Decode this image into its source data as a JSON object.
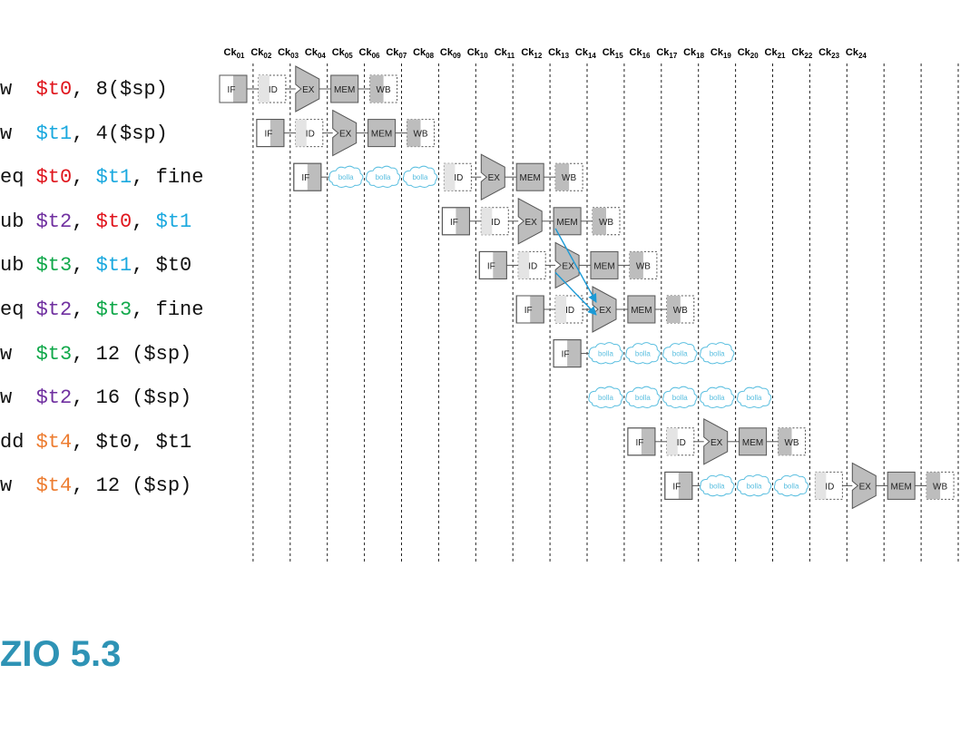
{
  "instructions": [
    {
      "tokens": [
        {
          "t": "w  ",
          "c": ""
        },
        {
          "t": "$t0",
          "c": "c-red"
        },
        {
          "t": ", 8($sp)",
          "c": ""
        }
      ]
    },
    {
      "tokens": [
        {
          "t": "w  ",
          "c": ""
        },
        {
          "t": "$t1",
          "c": "c-cyan"
        },
        {
          "t": ", 4($sp)",
          "c": ""
        }
      ]
    },
    {
      "tokens": [
        {
          "t": "eq ",
          "c": ""
        },
        {
          "t": "$t0",
          "c": "c-red"
        },
        {
          "t": ", ",
          "c": ""
        },
        {
          "t": "$t1",
          "c": "c-cyan"
        },
        {
          "t": ", fine",
          "c": ""
        }
      ]
    },
    {
      "tokens": [
        {
          "t": "ub ",
          "c": ""
        },
        {
          "t": "$t2",
          "c": "c-purple"
        },
        {
          "t": ", ",
          "c": ""
        },
        {
          "t": "$t0",
          "c": "c-red"
        },
        {
          "t": ", ",
          "c": ""
        },
        {
          "t": "$t1",
          "c": "c-cyan"
        }
      ]
    },
    {
      "tokens": [
        {
          "t": "ub ",
          "c": ""
        },
        {
          "t": "$t3",
          "c": "c-green"
        },
        {
          "t": ", ",
          "c": ""
        },
        {
          "t": "$t1",
          "c": "c-cyan"
        },
        {
          "t": ", $t0",
          "c": ""
        }
      ]
    },
    {
      "tokens": [
        {
          "t": "eq ",
          "c": ""
        },
        {
          "t": "$t2",
          "c": "c-purple"
        },
        {
          "t": ", ",
          "c": ""
        },
        {
          "t": "$t3",
          "c": "c-green"
        },
        {
          "t": ", fine",
          "c": ""
        }
      ]
    },
    {
      "tokens": [
        {
          "t": "w  ",
          "c": ""
        },
        {
          "t": "$t3",
          "c": "c-green"
        },
        {
          "t": ", 12 ($sp)",
          "c": ""
        }
      ]
    },
    {
      "tokens": [
        {
          "t": "w  ",
          "c": ""
        },
        {
          "t": "$t2",
          "c": "c-purple"
        },
        {
          "t": ", 16 ($sp)",
          "c": ""
        }
      ]
    },
    {
      "tokens": [
        {
          "t": "dd ",
          "c": ""
        },
        {
          "t": "$t4",
          "c": "c-orange"
        },
        {
          "t": ", $t0, $t1",
          "c": ""
        }
      ]
    },
    {
      "tokens": [
        {
          "t": "w  ",
          "c": ""
        },
        {
          "t": "$t4",
          "c": "c-orange"
        },
        {
          "t": ", 12 ($sp)",
          "c": ""
        }
      ]
    }
  ],
  "clocks": [
    "01",
    "02",
    "03",
    "04",
    "05",
    "06",
    "07",
    "08",
    "09",
    "10",
    "11",
    "12",
    "13",
    "14",
    "15",
    "16",
    "17",
    "18",
    "19",
    "20",
    "21",
    "22",
    "23",
    "24"
  ],
  "clock_prefix": "Ck",
  "stage_labels": {
    "IF": "IF",
    "ID": "ID",
    "EX": "EX",
    "MEM": "MEM",
    "WB": "WB",
    "bubble": "bolla"
  },
  "pipeline": [
    [
      "IF",
      "ID",
      "EX",
      "MEM",
      "WB"
    ],
    [
      "",
      "IF",
      "ID",
      "EX",
      "MEM",
      "WB"
    ],
    [
      "",
      "",
      "IF",
      "bubble",
      "bubble",
      "bubble",
      "ID",
      "EX",
      "MEM",
      "WB"
    ],
    [
      "",
      "",
      "",
      "",
      "",
      "",
      "IF",
      "ID",
      "EX",
      "MEM",
      "WB"
    ],
    [
      "",
      "",
      "",
      "",
      "",
      "",
      "",
      "IF",
      "ID",
      "EX",
      "MEM",
      "WB"
    ],
    [
      "",
      "",
      "",
      "",
      "",
      "",
      "",
      "",
      "IF",
      "ID",
      "EX",
      "MEM",
      "WB"
    ],
    [
      "",
      "",
      "",
      "",
      "",
      "",
      "",
      "",
      "",
      "IF",
      "bubble",
      "bubble",
      "bubble",
      "bubble"
    ],
    [
      "",
      "",
      "",
      "",
      "",
      "",
      "",
      "",
      "",
      "",
      "bubble",
      "bubble",
      "bubble",
      "bubble",
      "bubble"
    ],
    [
      "",
      "",
      "",
      "",
      "",
      "",
      "",
      "",
      "",
      "",
      "",
      "IF",
      "ID",
      "EX",
      "MEM",
      "WB"
    ],
    [
      "",
      "",
      "",
      "",
      "",
      "",
      "",
      "",
      "",
      "",
      "",
      "",
      "IF",
      "bubble",
      "bubble",
      "bubble",
      "ID",
      "EX",
      "MEM",
      "WB"
    ]
  ],
  "forwarding": [
    {
      "from_row": 3,
      "from_col": 9,
      "to_row": 5,
      "to_col": 10
    },
    {
      "from_row": 4,
      "from_col": 9,
      "to_row": 5,
      "to_col": 10
    }
  ],
  "exercise_title": "ZIO 5.3",
  "colors": {
    "title": "#2e93b5",
    "arrow": "#1b9ad6",
    "bubble": "#5bbfe0",
    "stage_fill": "#bdbdbd",
    "stage_stroke": "#555555"
  }
}
